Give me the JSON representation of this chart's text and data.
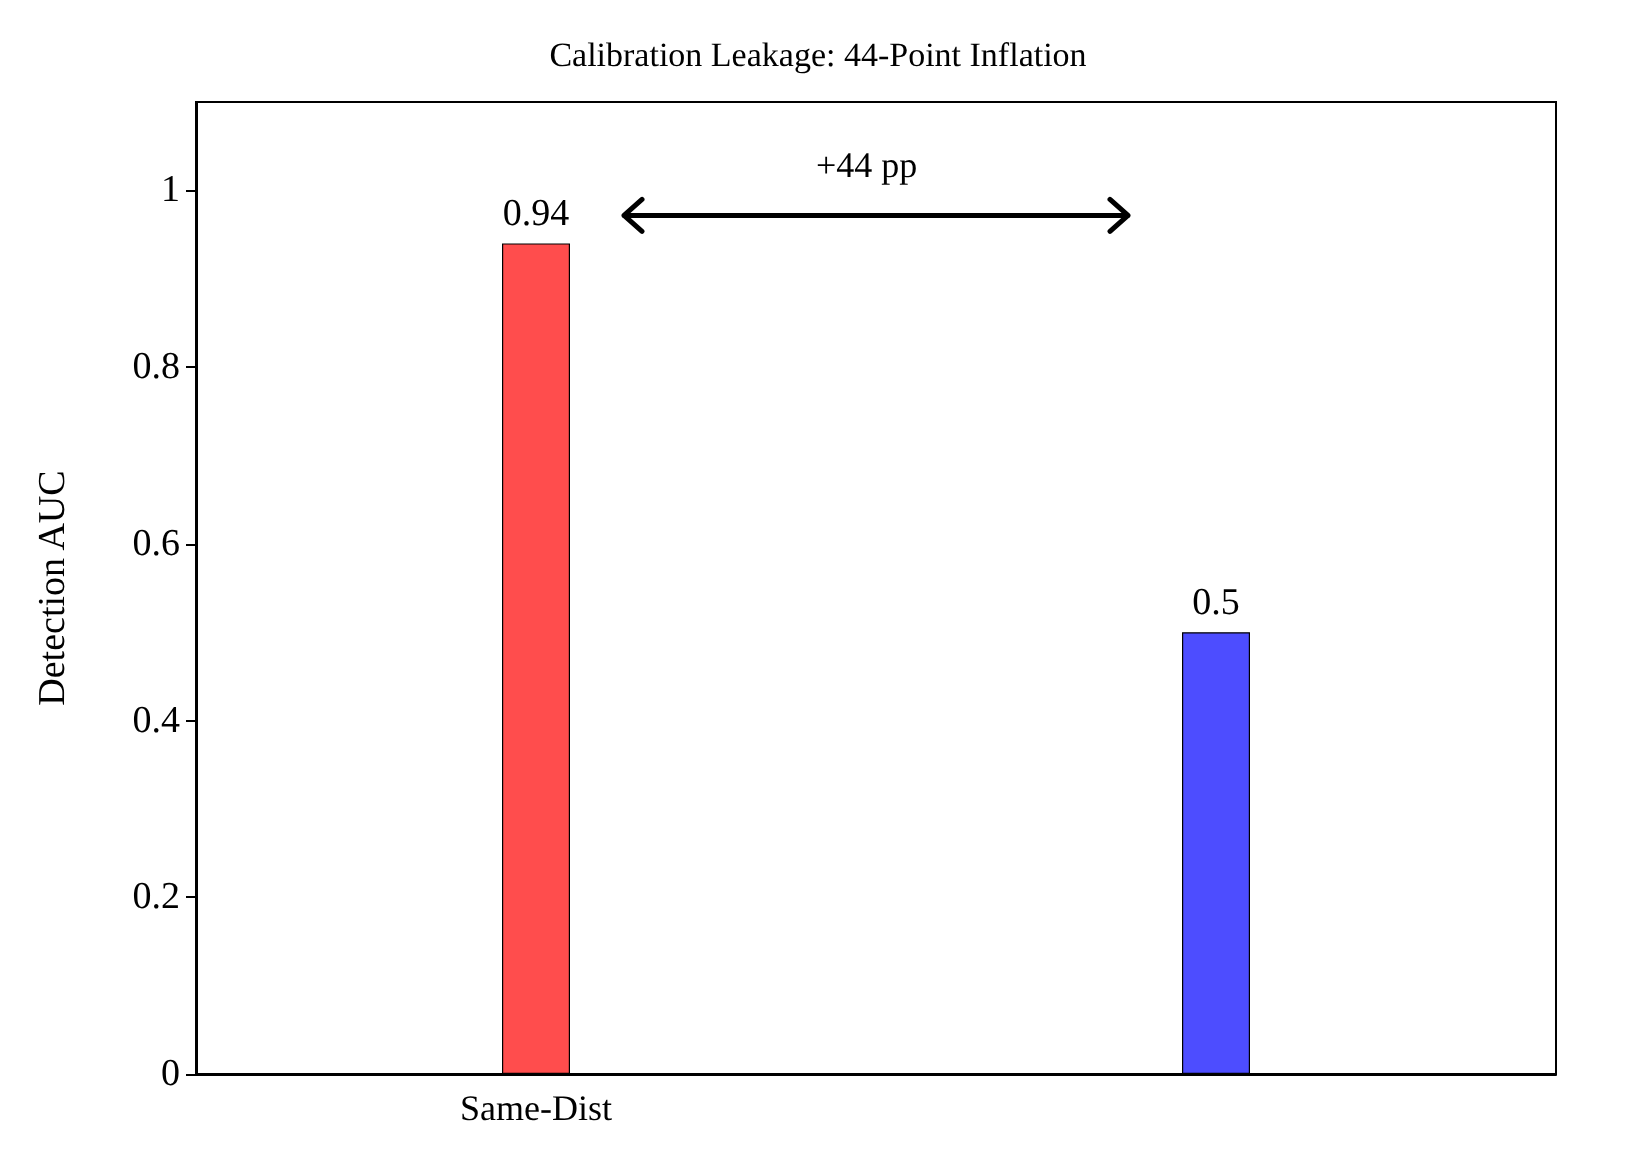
{
  "chart_data": {
    "type": "bar",
    "title": "Calibration Leakage: 44-Point Inflation",
    "ylabel": "Detection AUC",
    "categories": [
      "Same-Dist",
      null
    ],
    "values": [
      0.94,
      0.5
    ],
    "colors": [
      "#ff4d4d",
      "#4d4dff"
    ],
    "ylim": [
      0,
      1.1
    ],
    "yticks": [
      0,
      0.2,
      0.4,
      0.6,
      0.8,
      1
    ],
    "data_labels": true,
    "annotations": [
      "+44 pp"
    ]
  }
}
